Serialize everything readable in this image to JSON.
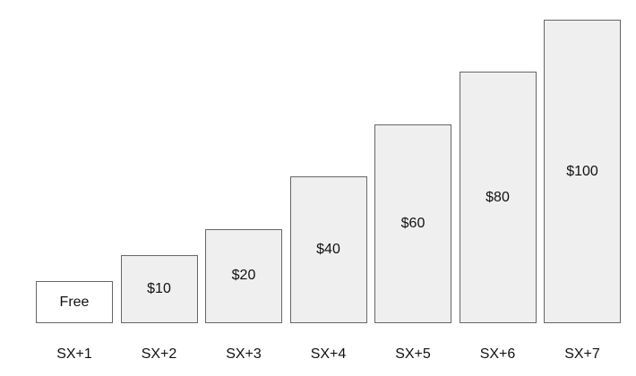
{
  "chart_data": {
    "type": "bar",
    "categories": [
      "SX+1",
      "SX+2",
      "SX+3",
      "SX+4",
      "SX+5",
      "SX+6",
      "SX+7"
    ],
    "values": [
      0,
      10,
      20,
      40,
      60,
      80,
      100
    ],
    "data_labels": [
      "Free",
      "$10",
      "$20",
      "$40",
      "$60",
      "$80",
      "$100"
    ],
    "title": "",
    "xlabel": "",
    "ylabel": "",
    "grid": false,
    "legend": "none",
    "colors": {
      "zero_bar_fill": "#ffffff",
      "bar_fill": "#efefef",
      "bar_stroke": "#666666",
      "text": "#111111"
    }
  }
}
